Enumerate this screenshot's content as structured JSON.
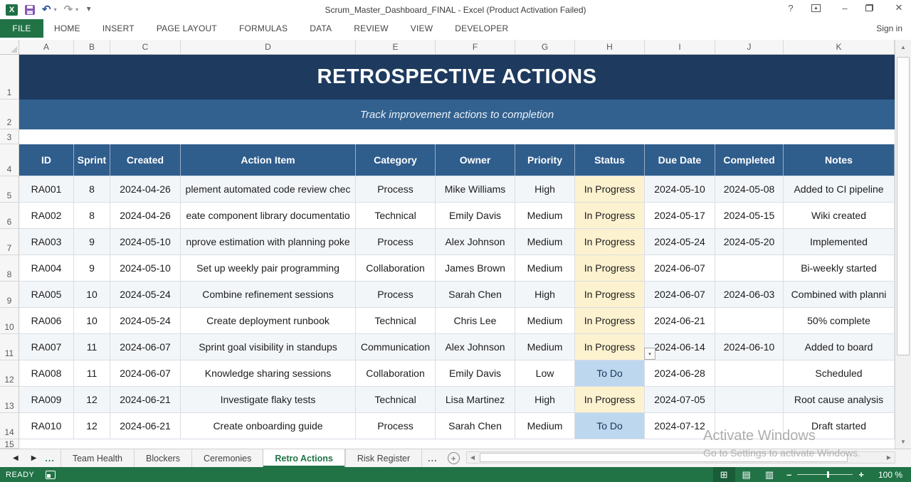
{
  "window": {
    "title": "Scrum_Master_Dashboard_FINAL - Excel (Product Activation Failed)",
    "sign_in": "Sign in"
  },
  "ribbon": {
    "tabs": [
      "FILE",
      "HOME",
      "INSERT",
      "PAGE LAYOUT",
      "FORMULAS",
      "DATA",
      "REVIEW",
      "VIEW",
      "DEVELOPER"
    ],
    "active_tab": "FILE"
  },
  "grid": {
    "columns": [
      "A",
      "B",
      "C",
      "D",
      "E",
      "F",
      "G",
      "H",
      "I",
      "J",
      "K"
    ],
    "row_numbers": [
      "1",
      "2",
      "3",
      "4",
      "5",
      "6",
      "7",
      "8",
      "9",
      "10",
      "11",
      "12",
      "13",
      "14",
      "15"
    ]
  },
  "sheet": {
    "title": "RETROSPECTIVE ACTIONS",
    "subtitle": "Track improvement actions to completion",
    "table": {
      "headers": [
        "ID",
        "Sprint",
        "Created",
        "Action Item",
        "Category",
        "Owner",
        "Priority",
        "Status",
        "Due Date",
        "Completed",
        "Notes"
      ],
      "rows": [
        {
          "status_type": "in-progress",
          "cells": [
            "RA001",
            "8",
            "2024-04-26",
            "plement automated code review chec",
            "Process",
            "Mike Williams",
            "High",
            "In Progress",
            "2024-05-10",
            "2024-05-08",
            "Added to CI pipeline"
          ]
        },
        {
          "status_type": "in-progress",
          "cells": [
            "RA002",
            "8",
            "2024-04-26",
            "eate component library documentatio",
            "Technical",
            "Emily Davis",
            "Medium",
            "In Progress",
            "2024-05-17",
            "2024-05-15",
            "Wiki created"
          ]
        },
        {
          "status_type": "in-progress",
          "cells": [
            "RA003",
            "9",
            "2024-05-10",
            "nprove estimation with planning poke",
            "Process",
            "Alex Johnson",
            "Medium",
            "In Progress",
            "2024-05-24",
            "2024-05-20",
            "Implemented"
          ]
        },
        {
          "status_type": "in-progress",
          "cells": [
            "RA004",
            "9",
            "2024-05-10",
            "Set up weekly pair programming",
            "Collaboration",
            "James Brown",
            "Medium",
            "In Progress",
            "2024-06-07",
            "",
            "Bi-weekly started"
          ]
        },
        {
          "status_type": "in-progress",
          "cells": [
            "RA005",
            "10",
            "2024-05-24",
            "Combine refinement sessions",
            "Process",
            "Sarah Chen",
            "High",
            "In Progress",
            "2024-06-07",
            "2024-06-03",
            "Combined with planni"
          ]
        },
        {
          "status_type": "in-progress",
          "cells": [
            "RA006",
            "10",
            "2024-05-24",
            "Create deployment runbook",
            "Technical",
            "Chris Lee",
            "Medium",
            "In Progress",
            "2024-06-21",
            "",
            "50% complete"
          ]
        },
        {
          "status_type": "in-progress",
          "cells": [
            "RA007",
            "11",
            "2024-06-07",
            "Sprint goal visibility in standups",
            "Communication",
            "Alex Johnson",
            "Medium",
            "In Progress",
            "2024-06-14",
            "2024-06-10",
            "Added to board"
          ]
        },
        {
          "status_type": "todo",
          "cells": [
            "RA008",
            "11",
            "2024-06-07",
            "Knowledge sharing sessions",
            "Collaboration",
            "Emily Davis",
            "Low",
            "To Do",
            "2024-06-28",
            "",
            "Scheduled"
          ]
        },
        {
          "status_type": "in-progress",
          "cells": [
            "RA009",
            "12",
            "2024-06-21",
            "Investigate flaky tests",
            "Technical",
            "Lisa Martinez",
            "High",
            "In Progress",
            "2024-07-05",
            "",
            "Root cause analysis"
          ]
        },
        {
          "status_type": "todo",
          "cells": [
            "RA010",
            "12",
            "2024-06-21",
            "Create onboarding guide",
            "Process",
            "Sarah Chen",
            "Medium",
            "To Do",
            "2024-07-12",
            "",
            "Draft started"
          ]
        }
      ]
    }
  },
  "sheet_tabs": {
    "tabs": [
      "Team Health",
      "Blockers",
      "Ceremonies",
      "Retro Actions",
      "Risk Register"
    ],
    "active_tab": "Retro Actions",
    "leading_ellipsis": "...",
    "trailing_ellipsis": "..."
  },
  "status_bar": {
    "mode": "READY",
    "zoom_level": "100 %"
  },
  "watermark": {
    "line1": "Activate Windows",
    "line2": "Go to Settings to activate Windows."
  },
  "colors": {
    "accent_green": "#217346",
    "title_banner_bg": "#1e3a5f",
    "subtitle_banner_bg": "#32618f",
    "table_header_bg": "#2f5d8c",
    "status_in_progress_bg": "#fdf2cf",
    "status_todo_bg": "#bdd7ee"
  }
}
